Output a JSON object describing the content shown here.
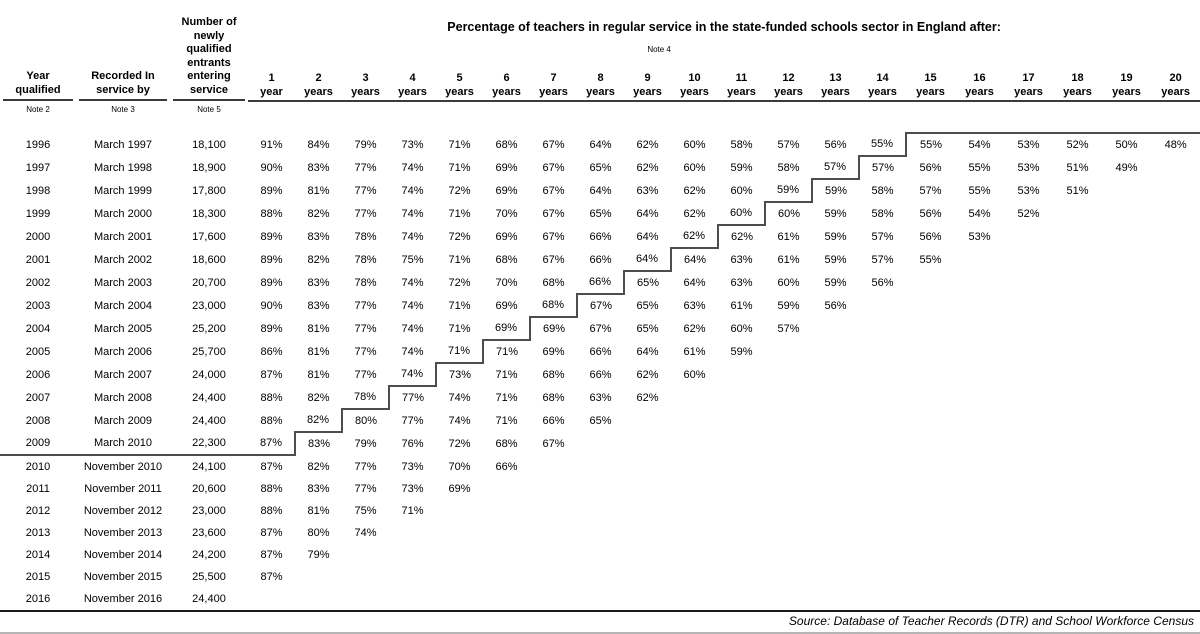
{
  "colors": {
    "text": "#000000",
    "border_dark": "#4d4d4d",
    "header_underline": "#3b3b3b",
    "bottom_rule": "#1a1a1a",
    "footer_rule": "#b5b5b5"
  },
  "table": {
    "title": "Percentage of teachers in regular service in the state-funded schools sector in England after:",
    "note_over_columns": "Note 4",
    "left_columns": [
      {
        "label": "Year qualified",
        "note": "Note 2"
      },
      {
        "label": "Recorded In service by",
        "note": "Note 3"
      },
      {
        "label": "Number of newly qualified entrants entering service",
        "note": "Note 5"
      }
    ],
    "service_year_columns": [
      {
        "num": "1",
        "unit": "year"
      },
      {
        "num": "2",
        "unit": "years"
      },
      {
        "num": "3",
        "unit": "years"
      },
      {
        "num": "4",
        "unit": "years"
      },
      {
        "num": "5",
        "unit": "years"
      },
      {
        "num": "6",
        "unit": "years"
      },
      {
        "num": "7",
        "unit": "years"
      },
      {
        "num": "8",
        "unit": "years"
      },
      {
        "num": "9",
        "unit": "years"
      },
      {
        "num": "10",
        "unit": "years"
      },
      {
        "num": "11",
        "unit": "years"
      },
      {
        "num": "12",
        "unit": "years"
      },
      {
        "num": "13",
        "unit": "years"
      },
      {
        "num": "14",
        "unit": "years"
      },
      {
        "num": "15",
        "unit": "years"
      },
      {
        "num": "16",
        "unit": "years"
      },
      {
        "num": "17",
        "unit": "years"
      },
      {
        "num": "18",
        "unit": "years"
      },
      {
        "num": "19",
        "unit": "years"
      },
      {
        "num": "20",
        "unit": "years"
      }
    ],
    "rows": [
      {
        "year": "1996",
        "recorded": "March 1997",
        "entrants": "18,100",
        "values": [
          "91%",
          "84%",
          "79%",
          "73%",
          "71%",
          "68%",
          "67%",
          "64%",
          "62%",
          "60%",
          "58%",
          "57%",
          "56%",
          "55%",
          "55%",
          "54%",
          "53%",
          "52%",
          "50%",
          "48%"
        ]
      },
      {
        "year": "1997",
        "recorded": "March 1998",
        "entrants": "18,900",
        "values": [
          "90%",
          "83%",
          "77%",
          "74%",
          "71%",
          "69%",
          "67%",
          "65%",
          "62%",
          "60%",
          "59%",
          "58%",
          "57%",
          "57%",
          "56%",
          "55%",
          "53%",
          "51%",
          "49%"
        ]
      },
      {
        "year": "1998",
        "recorded": "March 1999",
        "entrants": "17,800",
        "values": [
          "89%",
          "81%",
          "77%",
          "74%",
          "72%",
          "69%",
          "67%",
          "64%",
          "63%",
          "62%",
          "60%",
          "59%",
          "59%",
          "58%",
          "57%",
          "55%",
          "53%",
          "51%"
        ]
      },
      {
        "year": "1999",
        "recorded": "March 2000",
        "entrants": "18,300",
        "values": [
          "88%",
          "82%",
          "77%",
          "74%",
          "71%",
          "70%",
          "67%",
          "65%",
          "64%",
          "62%",
          "60%",
          "60%",
          "59%",
          "58%",
          "56%",
          "54%",
          "52%"
        ]
      },
      {
        "year": "2000",
        "recorded": "March 2001",
        "entrants": "17,600",
        "values": [
          "89%",
          "83%",
          "78%",
          "74%",
          "72%",
          "69%",
          "67%",
          "66%",
          "64%",
          "62%",
          "62%",
          "61%",
          "59%",
          "57%",
          "56%",
          "53%"
        ]
      },
      {
        "year": "2001",
        "recorded": "March 2002",
        "entrants": "18,600",
        "values": [
          "89%",
          "82%",
          "78%",
          "75%",
          "71%",
          "68%",
          "67%",
          "66%",
          "64%",
          "64%",
          "63%",
          "61%",
          "59%",
          "57%",
          "55%"
        ]
      },
      {
        "year": "2002",
        "recorded": "March 2003",
        "entrants": "20,700",
        "values": [
          "89%",
          "83%",
          "78%",
          "74%",
          "72%",
          "70%",
          "68%",
          "66%",
          "65%",
          "64%",
          "63%",
          "60%",
          "59%",
          "56%"
        ]
      },
      {
        "year": "2003",
        "recorded": "March 2004",
        "entrants": "23,000",
        "values": [
          "90%",
          "83%",
          "77%",
          "74%",
          "71%",
          "69%",
          "68%",
          "67%",
          "65%",
          "63%",
          "61%",
          "59%",
          "56%"
        ]
      },
      {
        "year": "2004",
        "recorded": "March 2005",
        "entrants": "25,200",
        "values": [
          "89%",
          "81%",
          "77%",
          "74%",
          "71%",
          "69%",
          "69%",
          "67%",
          "65%",
          "62%",
          "60%",
          "57%"
        ]
      },
      {
        "year": "2005",
        "recorded": "March 2006",
        "entrants": "25,700",
        "values": [
          "86%",
          "81%",
          "77%",
          "74%",
          "71%",
          "71%",
          "69%",
          "66%",
          "64%",
          "61%",
          "59%"
        ]
      },
      {
        "year": "2006",
        "recorded": "March 2007",
        "entrants": "24,000",
        "values": [
          "87%",
          "81%",
          "77%",
          "74%",
          "73%",
          "71%",
          "68%",
          "66%",
          "62%",
          "60%"
        ]
      },
      {
        "year": "2007",
        "recorded": "March 2008",
        "entrants": "24,400",
        "values": [
          "88%",
          "82%",
          "78%",
          "77%",
          "74%",
          "71%",
          "68%",
          "63%",
          "62%"
        ]
      },
      {
        "year": "2008",
        "recorded": "March 2009",
        "entrants": "24,400",
        "values": [
          "88%",
          "82%",
          "80%",
          "77%",
          "74%",
          "71%",
          "66%",
          "65%"
        ]
      },
      {
        "year": "2009",
        "recorded": "March 2010",
        "entrants": "22,300",
        "values": [
          "87%",
          "83%",
          "79%",
          "76%",
          "72%",
          "68%",
          "67%"
        ]
      },
      {
        "year": "2010",
        "recorded": "November 2010",
        "entrants": "24,100",
        "values": [
          "87%",
          "82%",
          "77%",
          "73%",
          "70%",
          "66%"
        ]
      },
      {
        "year": "2011",
        "recorded": "November 2011",
        "entrants": "20,600",
        "values": [
          "88%",
          "83%",
          "77%",
          "73%",
          "69%"
        ]
      },
      {
        "year": "2012",
        "recorded": "November 2012",
        "entrants": "23,000",
        "values": [
          "88%",
          "81%",
          "75%",
          "71%"
        ]
      },
      {
        "year": "2013",
        "recorded": "November 2013",
        "entrants": "23,600",
        "values": [
          "87%",
          "80%",
          "74%"
        ]
      },
      {
        "year": "2014",
        "recorded": "November 2014",
        "entrants": "24,200",
        "values": [
          "87%",
          "79%"
        ]
      },
      {
        "year": "2015",
        "recorded": "November 2015",
        "entrants": "25,500",
        "values": [
          "87%"
        ]
      },
      {
        "year": "2016",
        "recorded": "November 2016",
        "entrants": "24,400",
        "values": []
      }
    ],
    "census_boundary_year": "2010"
  },
  "footer": {
    "source": "Source: Database of Teacher Records (DTR) and School Workforce Census"
  }
}
